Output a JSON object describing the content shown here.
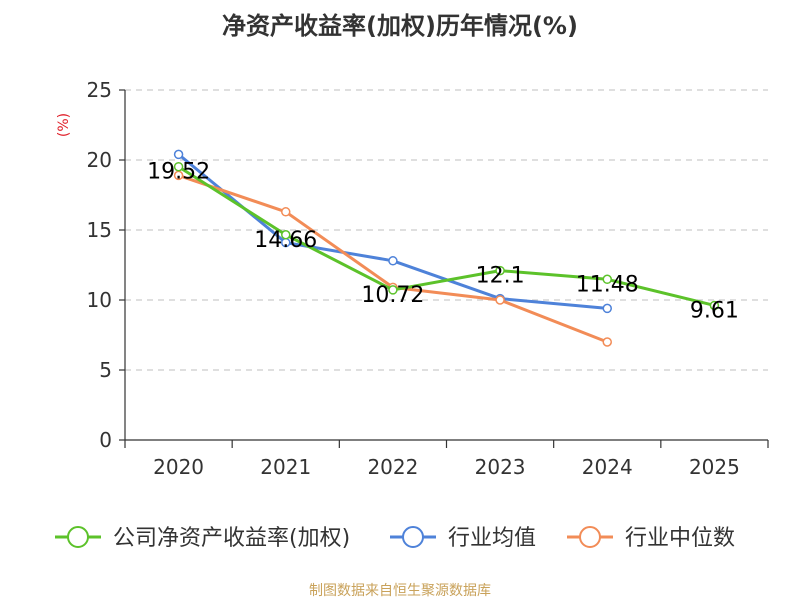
{
  "chart_data": {
    "type": "line",
    "title": "净资产收益率(加权)历年情况(%)",
    "ylabel": "(%)",
    "xlabel": "",
    "ylim": [
      0,
      25
    ],
    "yticks": [
      0,
      5,
      10,
      15,
      20,
      25
    ],
    "categories": [
      "2020",
      "2021",
      "2022",
      "2023",
      "2024",
      "2025"
    ],
    "grid": true,
    "legend_position": "bottom",
    "series": [
      {
        "name": "公司净资产收益率(加权)",
        "color": "#5cc22a",
        "values": [
          19.52,
          14.66,
          10.72,
          12.1,
          11.48,
          9.61
        ],
        "labels": [
          "19.52",
          "14.66",
          "10.72",
          "12.1",
          "11.48",
          "9.61"
        ]
      },
      {
        "name": "行业均值",
        "color": "#4e82d9",
        "values": [
          20.4,
          14.1,
          12.8,
          10.1,
          9.4,
          null
        ]
      },
      {
        "name": "行业中位数",
        "color": "#f28c57",
        "values": [
          18.9,
          16.3,
          10.9,
          10.0,
          7.0,
          null
        ]
      }
    ]
  },
  "footer": {
    "source": "制图数据来自恒生聚源数据库",
    "source_color": "#c9a25a"
  },
  "styles": {
    "unit_color": "#e0202a",
    "axis_color": "#333333",
    "grid_color": "#cccccc"
  }
}
